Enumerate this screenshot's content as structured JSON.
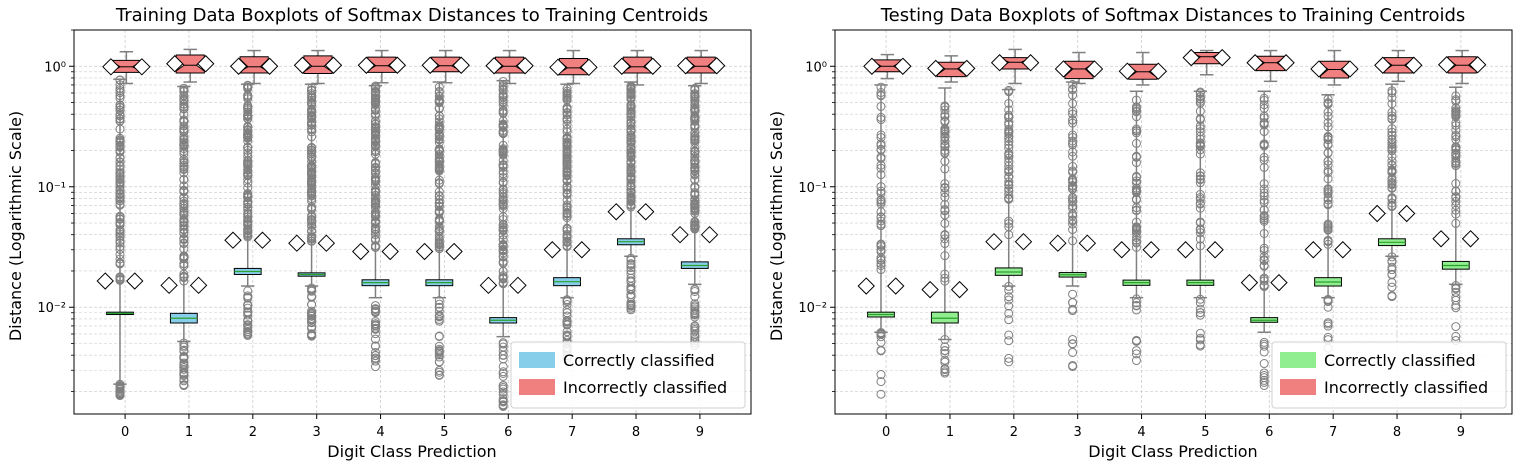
{
  "colors": {
    "correct_train": "#87ceeb",
    "correct_test": "#90ee90",
    "incorrect": "#f08080",
    "whisker": "#808080",
    "grid": "#cccccc",
    "median": "#2ca02c"
  },
  "chart_data": [
    {
      "type": "boxplot",
      "title": "Training Data Boxplots of Softmax Distances to Training Centroids",
      "xlabel": "Digit Class Prediction",
      "ylabel": "Distance (Logarithmic Scale)",
      "y_scale": "log",
      "ylim": [
        0.0013,
        2.0
      ],
      "y_ticks": [
        "10⁻²",
        "10⁻¹",
        "10⁰"
      ],
      "categories": [
        "0",
        "1",
        "2",
        "3",
        "4",
        "5",
        "6",
        "7",
        "8",
        "9"
      ],
      "grid": true,
      "legend_placement": "lower right",
      "legend": [
        "Correctly classified",
        "Incorrectly classified"
      ],
      "series": [
        {
          "name": "Correctly classified",
          "boxes": [
            {
              "q1": 0.0087,
              "median": 0.0089,
              "q3": 0.0091,
              "whisker_low": 0.0023,
              "whisker_high": 0.78,
              "mean": 0.0165,
              "outlier_min": 0.0018
            },
            {
              "q1": 0.0074,
              "median": 0.0081,
              "q3": 0.0089,
              "whisker_low": 0.0052,
              "whisker_high": 0.68,
              "mean": 0.0152,
              "outlier_min": 0.002
            },
            {
              "q1": 0.0187,
              "median": 0.0198,
              "q3": 0.021,
              "whisker_low": 0.015,
              "whisker_high": 0.71,
              "mean": 0.036,
              "outlier_min": 0.0056
            },
            {
              "q1": 0.0181,
              "median": 0.0187,
              "q3": 0.0193,
              "whisker_low": 0.015,
              "whisker_high": 0.71,
              "mean": 0.034,
              "outlier_min": 0.0055
            },
            {
              "q1": 0.0151,
              "median": 0.016,
              "q3": 0.0169,
              "whisker_low": 0.012,
              "whisker_high": 0.69,
              "mean": 0.029,
              "outlier_min": 0.0031
            },
            {
              "q1": 0.0151,
              "median": 0.016,
              "q3": 0.0169,
              "whisker_low": 0.012,
              "whisker_high": 0.74,
              "mean": 0.029,
              "outlier_min": 0.0024
            },
            {
              "q1": 0.0074,
              "median": 0.0078,
              "q3": 0.0082,
              "whisker_low": 0.0057,
              "whisker_high": 0.76,
              "mean": 0.0152,
              "outlier_min": 0.0015
            },
            {
              "q1": 0.0151,
              "median": 0.0163,
              "q3": 0.0176,
              "whisker_low": 0.012,
              "whisker_high": 0.71,
              "mean": 0.03,
              "outlier_min": 0.0036
            },
            {
              "q1": 0.033,
              "median": 0.035,
              "q3": 0.037,
              "whisker_low": 0.0265,
              "whisker_high": 0.74,
              "mean": 0.062,
              "outlier_min": 0.0095
            },
            {
              "q1": 0.021,
              "median": 0.0222,
              "q3": 0.0238,
              "whisker_low": 0.0155,
              "whisker_high": 0.69,
              "mean": 0.04,
              "outlier_min": 0.0048
            }
          ]
        },
        {
          "name": "Incorrectly classified",
          "boxes": [
            {
              "q1": 0.89,
              "median": 0.99,
              "q3": 1.12,
              "whisker_low": 0.72,
              "whisker_high": 1.32,
              "mean": 0.99
            },
            {
              "q1": 0.88,
              "median": 1.02,
              "q3": 1.24,
              "whisker_low": 0.74,
              "whisker_high": 1.38,
              "mean": 1.05
            },
            {
              "q1": 0.88,
              "median": 0.99,
              "q3": 1.2,
              "whisker_low": 0.72,
              "whisker_high": 1.35,
              "mean": 1.0
            },
            {
              "q1": 0.87,
              "median": 1.0,
              "q3": 1.22,
              "whisker_low": 0.72,
              "whisker_high": 1.35,
              "mean": 1.02
            },
            {
              "q1": 0.89,
              "median": 1.01,
              "q3": 1.19,
              "whisker_low": 0.73,
              "whisker_high": 1.35,
              "mean": 1.02
            },
            {
              "q1": 0.9,
              "median": 1.01,
              "q3": 1.19,
              "whisker_low": 0.73,
              "whisker_high": 1.35,
              "mean": 1.02
            },
            {
              "q1": 0.88,
              "median": 1.0,
              "q3": 1.19,
              "whisker_low": 0.72,
              "whisker_high": 1.35,
              "mean": 1.01
            },
            {
              "q1": 0.85,
              "median": 0.97,
              "q3": 1.16,
              "whisker_low": 0.72,
              "whisker_high": 1.35,
              "mean": 0.98
            },
            {
              "q1": 0.88,
              "median": 0.99,
              "q3": 1.19,
              "whisker_low": 0.7,
              "whisker_high": 1.35,
              "mean": 1.0
            },
            {
              "q1": 0.88,
              "median": 1.0,
              "q3": 1.19,
              "whisker_low": 0.72,
              "whisker_high": 1.35,
              "mean": 1.01
            }
          ]
        }
      ]
    },
    {
      "type": "boxplot",
      "title": "Testing Data Boxplots of Softmax Distances to Training Centroids",
      "xlabel": "Digit Class Prediction",
      "ylabel": "Distance (Logarithmic Scale)",
      "y_scale": "log",
      "ylim": [
        0.0013,
        2.0
      ],
      "y_ticks": [
        "10⁻²",
        "10⁻¹",
        "10⁰"
      ],
      "categories": [
        "0",
        "1",
        "2",
        "3",
        "4",
        "5",
        "6",
        "7",
        "8",
        "9"
      ],
      "grid": true,
      "legend_placement": "lower right",
      "legend": [
        "Correctly classified",
        "Incorrectly classified"
      ],
      "series": [
        {
          "name": "Correctly classified",
          "boxes": [
            {
              "q1": 0.0083,
              "median": 0.0087,
              "q3": 0.0091,
              "whisker_low": 0.0062,
              "whisker_high": 0.7,
              "mean": 0.015,
              "outlier_min": 0.0017
            },
            {
              "q1": 0.0074,
              "median": 0.0081,
              "q3": 0.0091,
              "whisker_low": 0.0054,
              "whisker_high": 0.66,
              "mean": 0.014,
              "outlier_min": 0.0027
            },
            {
              "q1": 0.0184,
              "median": 0.0196,
              "q3": 0.0212,
              "whisker_low": 0.015,
              "whisker_high": 0.64,
              "mean": 0.035,
              "outlier_min": 0.0034
            },
            {
              "q1": 0.0178,
              "median": 0.0186,
              "q3": 0.0194,
              "whisker_low": 0.015,
              "whisker_high": 0.74,
              "mean": 0.034,
              "outlier_min": 0.0032
            },
            {
              "q1": 0.0152,
              "median": 0.016,
              "q3": 0.0168,
              "whisker_low": 0.012,
              "whisker_high": 0.62,
              "mean": 0.03,
              "outlier_min": 0.0036
            },
            {
              "q1": 0.0152,
              "median": 0.016,
              "q3": 0.0168,
              "whisker_low": 0.012,
              "whisker_high": 0.62,
              "mean": 0.03,
              "outlier_min": 0.0047
            },
            {
              "q1": 0.0075,
              "median": 0.0078,
              "q3": 0.0082,
              "whisker_low": 0.0062,
              "whisker_high": 0.62,
              "mean": 0.016,
              "outlier_min": 0.0021
            },
            {
              "q1": 0.015,
              "median": 0.0162,
              "q3": 0.0176,
              "whisker_low": 0.012,
              "whisker_high": 0.58,
              "mean": 0.03,
              "outlier_min": 0.0041
            },
            {
              "q1": 0.0325,
              "median": 0.0346,
              "q3": 0.037,
              "whisker_low": 0.0265,
              "whisker_high": 0.71,
              "mean": 0.06,
              "outlier_min": 0.012
            },
            {
              "q1": 0.0207,
              "median": 0.0222,
              "q3": 0.024,
              "whisker_low": 0.0155,
              "whisker_high": 0.67,
              "mean": 0.037,
              "outlier_min": 0.0052
            }
          ]
        },
        {
          "name": "Incorrectly classified",
          "boxes": [
            {
              "q1": 0.9,
              "median": 1.0,
              "q3": 1.13,
              "whisker_low": 0.79,
              "whisker_high": 1.25,
              "mean": 1.0
            },
            {
              "q1": 0.82,
              "median": 0.95,
              "q3": 1.08,
              "whisker_low": 0.74,
              "whisker_high": 1.22,
              "mean": 0.96
            },
            {
              "q1": 0.95,
              "median": 1.08,
              "q3": 1.18,
              "whisker_low": 0.72,
              "whisker_high": 1.38,
              "mean": 1.07
            },
            {
              "q1": 0.79,
              "median": 0.95,
              "q3": 1.1,
              "whisker_low": 0.72,
              "whisker_high": 1.3,
              "mean": 0.95
            },
            {
              "q1": 0.78,
              "median": 0.9,
              "q3": 1.04,
              "whisker_low": 0.7,
              "whisker_high": 1.3,
              "mean": 0.91
            },
            {
              "q1": 1.05,
              "median": 1.2,
              "q3": 1.3,
              "whisker_low": 0.85,
              "whisker_high": 1.35,
              "mean": 1.18
            },
            {
              "q1": 0.92,
              "median": 1.07,
              "q3": 1.21,
              "whisker_low": 0.75,
              "whisker_high": 1.35,
              "mean": 1.07
            },
            {
              "q1": 0.8,
              "median": 0.94,
              "q3": 1.1,
              "whisker_low": 0.7,
              "whisker_high": 1.35,
              "mean": 0.95
            },
            {
              "q1": 0.88,
              "median": 1.02,
              "q3": 1.18,
              "whisker_low": 0.75,
              "whisker_high": 1.35,
              "mean": 1.02
            },
            {
              "q1": 0.88,
              "median": 1.02,
              "q3": 1.2,
              "whisker_low": 0.72,
              "whisker_high": 1.35,
              "mean": 1.03
            }
          ]
        }
      ]
    }
  ]
}
